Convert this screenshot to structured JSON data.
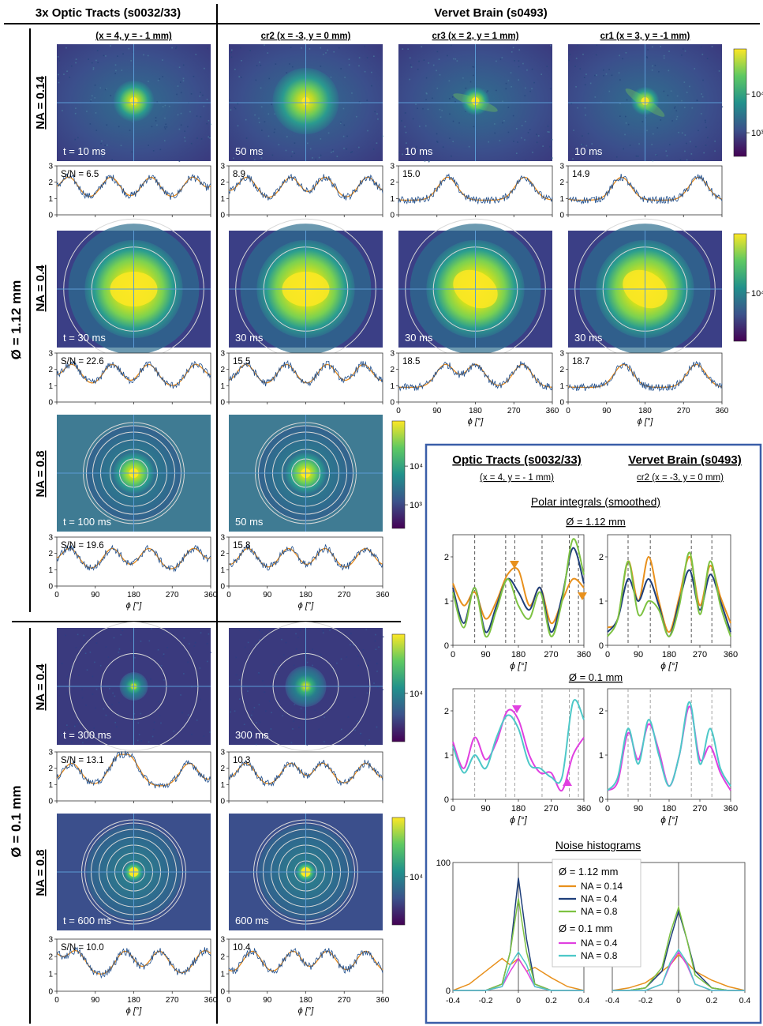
{
  "headers": {
    "left": "3x Optic Tracts (s0032/33)",
    "right": "Vervet Brain (s0493)"
  },
  "columns": [
    {
      "sub": "(x = 4, y = - 1 mm)"
    },
    {
      "sub": "cr2 (x = -3, y = 0 mm)"
    },
    {
      "sub": "cr3 (x = 2, y = 1 mm)"
    },
    {
      "sub": "cr1 (x = 3, y = -1 mm)"
    }
  ],
  "diameters": {
    "big": "Ø = 1.12 mm",
    "small": "Ø = 0.1 mm"
  },
  "na_labels": [
    "NA = 0.14",
    "NA = 0.4",
    "NA = 0.8",
    "NA = 0.4",
    "NA = 0.8"
  ],
  "colorbars": [
    {
      "ticks": [
        "10⁴",
        "10³"
      ]
    },
    {
      "ticks": [
        "10⁴"
      ]
    },
    {
      "ticks": [
        "10⁴",
        "10³"
      ]
    },
    {
      "ticks": [
        "10⁴"
      ]
    },
    {
      "ticks": [
        "10⁴"
      ]
    }
  ],
  "axis": {
    "xlabel": "ϕ [°]",
    "xticks": [
      "0",
      "90",
      "180",
      "270",
      "360"
    ]
  },
  "colors": {
    "blue_trace": "#1f4e8c",
    "orange_trace": "#e88a1a",
    "na014": "#e8901c",
    "na04": "#1f3f7a",
    "na08": "#7dc242",
    "na04_small": "#e040e0",
    "na08_small": "#4dc8c8",
    "grid_line": "#5b9bd5",
    "inset_border": "#3a5ea8"
  },
  "rows": [
    {
      "na": "NA = 0.14",
      "ymax": 3,
      "cells": [
        {
          "time": "t = 10 ms",
          "snr": "S/N = 6.5",
          "peaks": [
            28,
            126,
            220,
            318
          ]
        },
        {
          "time": "50 ms",
          "snr": "8.9",
          "peaks": [
            42,
            145,
            225,
            325
          ]
        },
        {
          "time": "10 ms",
          "snr": "15.0",
          "peaks": [
            115,
            295
          ]
        },
        {
          "time": "10 ms",
          "snr": "14.9",
          "peaks": [
            125,
            305
          ]
        }
      ]
    },
    {
      "na": "NA = 0.4",
      "ymax": 3,
      "cells": [
        {
          "time": "t = 30 ms",
          "snr": "S/N = 22.6",
          "peaks": [
            35,
            130,
            215,
            325
          ]
        },
        {
          "time": "30 ms",
          "snr": "15.5",
          "peaks": [
            40,
            135,
            230,
            315
          ]
        },
        {
          "time": "30 ms",
          "snr": "18.5",
          "peaks": [
            110,
            180,
            290
          ]
        },
        {
          "time": "30 ms",
          "snr": "18.7",
          "peaks": [
            130,
            300
          ]
        }
      ]
    },
    {
      "na": "NA = 0.8",
      "ymax": 3,
      "cells": [
        {
          "time": "t = 100 ms",
          "snr": "S/N = 19.6",
          "peaks": [
            30,
            130,
            215,
            320
          ]
        },
        {
          "time": "50 ms",
          "snr": "15.8",
          "peaks": [
            45,
            140,
            225,
            320
          ]
        }
      ]
    },
    {
      "na": "NA = 0.4",
      "ymax": 3,
      "cells": [
        {
          "time": "t = 300 ms",
          "snr": "S/N = 13.1",
          "peaks": [
            35,
            140,
            175,
            310
          ]
        },
        {
          "time": "300 ms",
          "snr": "10.3",
          "peaks": [
            40,
            145,
            220,
            320
          ]
        }
      ]
    },
    {
      "na": "NA = 0.8",
      "ymax": 3,
      "cells": [
        {
          "time": "t = 600 ms",
          "snr": "S/N = 10.0",
          "peaks": [
            45,
            160,
            240,
            345
          ]
        },
        {
          "time": "600 ms",
          "snr": "10.4",
          "peaks": [
            55,
            150,
            230,
            320
          ]
        }
      ]
    }
  ],
  "inset": {
    "title_left": "Optic Tracts (s0032/33)",
    "title_right": "Vervet Brain (s0493)",
    "sub_left": "(x = 4, y = - 1 mm)",
    "sub_right": "cr2 (x = -3, y = 0 mm)",
    "polar_title": "Polar integrals (smoothed)",
    "d_big": "Ø = 1.12 mm",
    "d_small": "Ø = 0.1 mm",
    "noise_title": "Noise histograms",
    "polar_yticks": [
      "0",
      "1",
      "2"
    ],
    "polar_xticks": [
      "0",
      "90",
      "180",
      "270",
      "360"
    ],
    "noise_yticks": [
      "0",
      "100"
    ],
    "noise_xticks": [
      "-0.4",
      "-0.2",
      "0",
      "0.2",
      "0.4"
    ],
    "legend": {
      "d_big": "Ø = 1.12 mm",
      "na014": "NA = 0.14",
      "na04": "NA = 0.4",
      "na08": "NA = 0.8",
      "d_small": "Ø = 0.1 mm",
      "na04s": "NA = 0.4",
      "na08s": "NA = 0.8"
    }
  },
  "chart_data": [
    {
      "type": "line",
      "title": "Polar integrals (smoothed), Ø = 1.12 mm, Optic Tracts",
      "xlabel": "ϕ [°]",
      "xlim": [
        0,
        360
      ],
      "ylim": [
        0,
        2.5
      ],
      "x": [
        0,
        30,
        60,
        90,
        120,
        150,
        180,
        210,
        240,
        270,
        300,
        330,
        360
      ],
      "series": [
        {
          "name": "NA = 0.14",
          "values": [
            1.4,
            0.9,
            1.2,
            0.6,
            1.0,
            1.6,
            1.7,
            0.9,
            1.3,
            0.5,
            1.0,
            1.5,
            1.3
          ]
        },
        {
          "name": "NA = 0.4",
          "values": [
            1.3,
            0.5,
            1.3,
            0.3,
            0.9,
            1.5,
            1.2,
            0.8,
            1.3,
            0.3,
            1.1,
            2.2,
            1.4
          ]
        },
        {
          "name": "NA = 0.8",
          "values": [
            1.2,
            0.4,
            1.3,
            0.2,
            0.8,
            1.5,
            0.9,
            0.6,
            1.2,
            0.2,
            1.0,
            2.4,
            1.6
          ]
        }
      ]
    },
    {
      "type": "line",
      "title": "Polar integrals (smoothed), Ø = 1.12 mm, Vervet Brain",
      "xlabel": "ϕ [°]",
      "xlim": [
        0,
        360
      ],
      "ylim": [
        0,
        2.5
      ],
      "x": [
        0,
        30,
        60,
        90,
        120,
        150,
        180,
        210,
        240,
        270,
        300,
        330,
        360
      ],
      "series": [
        {
          "name": "NA = 0.14",
          "values": [
            0.4,
            0.6,
            1.9,
            1.0,
            2.0,
            1.0,
            0.3,
            1.1,
            2.0,
            0.9,
            1.8,
            1.1,
            0.5
          ]
        },
        {
          "name": "NA = 0.4",
          "values": [
            0.3,
            0.6,
            1.5,
            1.0,
            1.5,
            0.9,
            0.2,
            1.0,
            1.7,
            0.8,
            1.6,
            1.0,
            0.3
          ]
        },
        {
          "name": "NA = 0.8",
          "values": [
            0.2,
            0.6,
            1.9,
            0.7,
            1.0,
            0.8,
            0.2,
            0.9,
            2.1,
            0.7,
            1.9,
            0.9,
            0.2
          ]
        }
      ]
    },
    {
      "type": "line",
      "title": "Polar integrals (smoothed), Ø = 0.1 mm, Optic Tracts",
      "xlabel": "ϕ [°]",
      "xlim": [
        0,
        360
      ],
      "ylim": [
        0,
        2.5
      ],
      "x": [
        0,
        30,
        60,
        90,
        120,
        150,
        180,
        210,
        240,
        270,
        300,
        330,
        360
      ],
      "series": [
        {
          "name": "NA = 0.4",
          "values": [
            1.3,
            0.7,
            1.4,
            0.9,
            1.3,
            2.0,
            1.8,
            1.0,
            0.6,
            0.6,
            0.2,
            1.0,
            1.4
          ]
        },
        {
          "name": "NA = 0.8",
          "values": [
            1.2,
            0.6,
            1.0,
            0.7,
            1.4,
            1.9,
            1.6,
            0.8,
            0.7,
            0.5,
            0.5,
            2.2,
            1.8
          ]
        }
      ]
    },
    {
      "type": "line",
      "title": "Polar integrals (smoothed), Ø = 0.1 mm, Vervet Brain",
      "xlabel": "ϕ [°]",
      "xlim": [
        0,
        360
      ],
      "ylim": [
        0,
        2.5
      ],
      "x": [
        0,
        30,
        60,
        90,
        120,
        150,
        180,
        210,
        240,
        270,
        300,
        330,
        360
      ],
      "series": [
        {
          "name": "NA = 0.4",
          "values": [
            0.2,
            0.4,
            1.5,
            0.9,
            1.7,
            1.1,
            0.3,
            1.0,
            2.1,
            0.9,
            1.2,
            0.6,
            0.2
          ]
        },
        {
          "name": "NA = 0.8",
          "values": [
            0.2,
            0.5,
            1.6,
            0.8,
            1.8,
            1.0,
            0.3,
            1.0,
            2.2,
            0.8,
            1.6,
            0.7,
            0.3
          ]
        }
      ]
    },
    {
      "type": "line",
      "title": "Noise histograms, Optic Tracts",
      "xlim": [
        -0.4,
        0.4
      ],
      "ylim": [
        0,
        100
      ],
      "x": [
        -0.4,
        -0.3,
        -0.2,
        -0.1,
        -0.05,
        0,
        0.05,
        0.1,
        0.2,
        0.3,
        0.4
      ],
      "series": [
        {
          "name": "NA = 0.14",
          "values": [
            0,
            5,
            15,
            25,
            20,
            25,
            15,
            18,
            10,
            3,
            0
          ]
        },
        {
          "name": "NA = 0.4",
          "values": [
            0,
            0,
            0,
            5,
            30,
            88,
            40,
            5,
            0,
            0,
            0
          ]
        },
        {
          "name": "NA = 0.8",
          "values": [
            0,
            0,
            0,
            5,
            30,
            72,
            30,
            5,
            0,
            0,
            0
          ]
        },
        {
          "name": "NA = 0.4 (Ø = 0.1 mm)",
          "values": [
            0,
            0,
            0,
            3,
            15,
            25,
            15,
            3,
            0,
            0,
            0
          ]
        },
        {
          "name": "NA = 0.8 (Ø = 0.1 mm)",
          "values": [
            0,
            0,
            0,
            3,
            20,
            30,
            20,
            3,
            0,
            0,
            0
          ]
        }
      ]
    },
    {
      "type": "line",
      "title": "Noise histograms, Vervet Brain",
      "xlim": [
        -0.4,
        0.4
      ],
      "ylim": [
        0,
        100
      ],
      "x": [
        -0.4,
        -0.3,
        -0.2,
        -0.1,
        -0.05,
        0,
        0.05,
        0.1,
        0.2,
        0.3,
        0.4
      ],
      "series": [
        {
          "name": "NA = 0.14",
          "values": [
            0,
            2,
            6,
            15,
            20,
            28,
            22,
            15,
            8,
            3,
            0
          ]
        },
        {
          "name": "NA = 0.4",
          "values": [
            0,
            0,
            2,
            15,
            40,
            62,
            40,
            15,
            2,
            0,
            0
          ]
        },
        {
          "name": "NA = 0.8",
          "values": [
            0,
            0,
            2,
            18,
            45,
            65,
            40,
            12,
            2,
            0,
            0
          ]
        },
        {
          "name": "NA = 0.4 (Ø = 0.1 mm)",
          "values": [
            0,
            0,
            0,
            5,
            20,
            30,
            20,
            5,
            0,
            0,
            0
          ]
        },
        {
          "name": "NA = 0.8 (Ø = 0.1 mm)",
          "values": [
            0,
            0,
            0,
            5,
            22,
            32,
            22,
            5,
            0,
            0,
            0
          ]
        }
      ]
    }
  ]
}
